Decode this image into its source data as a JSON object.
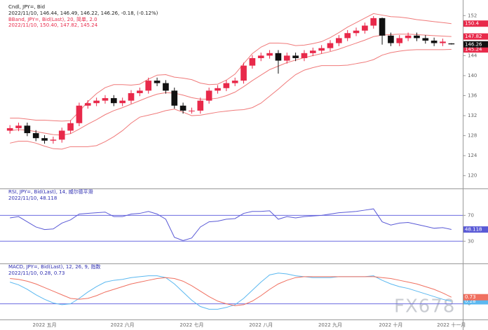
{
  "chart_data": [
    {
      "type": "candlestick",
      "title": "Cndl, JPY=, Bid",
      "subtitle": "2022/11/10, 146.44, 146.49, 146.22, 146.26, -0.18, (-0.12%)",
      "band_title": "BBand, JPY=, Bid(Last), 20, 简单, 2.0",
      "band_subtitle": "2022/11/10, 150.40, 147.82, 145.24",
      "categories": [
        null,
        null,
        null,
        null,
        "2022 五月",
        null,
        null,
        null,
        null,
        null,
        null,
        null,
        null,
        "2022 六月",
        null,
        null,
        null,
        null,
        null,
        null,
        null,
        "2022 七月",
        null,
        null,
        null,
        null,
        null,
        null,
        null,
        "2022 八月",
        null,
        null,
        null,
        null,
        null,
        null,
        null,
        "2022 九月",
        null,
        null,
        null,
        null,
        null,
        null,
        "2022 十月",
        null,
        null,
        null,
        null,
        null,
        null,
        "2022 十一月"
      ],
      "open": [
        129.0,
        129.5,
        130,
        128.5,
        127.5,
        127,
        127.2,
        129,
        130.5,
        134,
        134.5,
        135,
        135.5,
        134.5,
        135,
        136.5,
        137,
        139,
        138.5,
        137,
        134,
        133,
        133,
        135,
        137,
        137.5,
        138.5,
        139,
        142,
        143.5,
        144,
        144.5,
        143,
        144,
        143.5,
        144.5,
        145,
        145.5,
        146.5,
        147.5,
        148.5,
        149,
        150,
        151.5,
        148,
        146.5,
        147.5,
        148,
        147.5,
        147,
        146.5,
        146.44
      ],
      "high": [
        130.1,
        130.6,
        130.6,
        129.1,
        128.1,
        127.8,
        129.6,
        131.1,
        134.6,
        135.1,
        135.6,
        136.1,
        136.1,
        135.6,
        137.1,
        137.6,
        139.6,
        139.6,
        139.1,
        137.6,
        134.6,
        133.6,
        135.6,
        137.6,
        138.1,
        139.1,
        139.6,
        142.6,
        144.1,
        144.6,
        145.1,
        145.1,
        144.6,
        144.6,
        145.1,
        145.6,
        146.1,
        147.1,
        148.1,
        149.1,
        149.6,
        150.6,
        151.9,
        151.6,
        148.6,
        148.1,
        148.6,
        148.6,
        148.1,
        147.6,
        147.4,
        146.49
      ],
      "low": [
        128.4,
        128.9,
        127.9,
        126.9,
        126.4,
        126.4,
        126.6,
        128.4,
        129.9,
        133.4,
        133.9,
        134.4,
        133.9,
        133.9,
        134.4,
        135.9,
        136.4,
        137.9,
        136.4,
        133.4,
        132.4,
        132.4,
        132.4,
        134.4,
        136.4,
        136.9,
        137.9,
        138.4,
        141.4,
        142.9,
        143.4,
        140.4,
        142.4,
        142.9,
        142.9,
        143.9,
        144.4,
        144.9,
        145.9,
        146.9,
        147.9,
        148.4,
        149.4,
        146.2,
        145.9,
        145.9,
        146.9,
        146.9,
        146.4,
        145.9,
        145.9,
        146.22
      ],
      "close": [
        129.5,
        130,
        128.5,
        127.5,
        127,
        127.2,
        129,
        130.5,
        134,
        134.5,
        135,
        135.5,
        134.5,
        135,
        136.5,
        137,
        139,
        138.5,
        137,
        134,
        133,
        133,
        135,
        137,
        137.5,
        138.5,
        139,
        142,
        143.5,
        144,
        144.5,
        143,
        144,
        143.5,
        144.5,
        145,
        145.5,
        146.5,
        147.5,
        148.5,
        149,
        150,
        151.5,
        148,
        146.5,
        147.5,
        148,
        147.5,
        147,
        146.5,
        146.8,
        146.26
      ],
      "up_color": "#e8294a",
      "down_color": "#111111",
      "bands": [
        {
          "color": "#f07a7a",
          "values": [
            131.5,
            131.5,
            131.3,
            131.1,
            131.1,
            131,
            130.9,
            131,
            132.8,
            134.8,
            136.4,
            137.6,
            138.2,
            138.2,
            138.1,
            138.3,
            139.3,
            140.1,
            140.2,
            139.7,
            139.5,
            139.2,
            138.5,
            138.2,
            138.3,
            139.1,
            140.3,
            142.4,
            144.4,
            145.7,
            146.5,
            146.5,
            146.4,
            146,
            146.1,
            146.4,
            146.8,
            147.6,
            148.6,
            149.7,
            150.6,
            151.5,
            152.4,
            152.1,
            151.8,
            151.7,
            151.5,
            151.2,
            151,
            150.8,
            150.6,
            150.4
          ]
        },
        {
          "color": "#f07a7a",
          "values": [
            129,
            129.2,
            129.1,
            128.8,
            128.5,
            128.2,
            128.1,
            128.4,
            129.3,
            130.3,
            131.2,
            132.2,
            133,
            133.6,
            134.3,
            135,
            135.7,
            136.3,
            136.6,
            136.5,
            136.1,
            135.6,
            135.3,
            135.3,
            135.5,
            136,
            136.7,
            137.8,
            139,
            140.1,
            141.2,
            141.9,
            142.6,
            143.1,
            143.6,
            144,
            144.4,
            144.8,
            145.3,
            145.9,
            146.5,
            147.1,
            147.8,
            148.1,
            148.2,
            148.3,
            148.3,
            148.2,
            148.1,
            148,
            147.9,
            147.82
          ]
        },
        {
          "color": "#f07a7a",
          "values": [
            126.5,
            126.9,
            126.9,
            126.5,
            125.9,
            125.4,
            125.3,
            125.8,
            125.8,
            125.8,
            126,
            126.8,
            127.8,
            129,
            130.5,
            131.7,
            132.1,
            132.5,
            133,
            133.3,
            132.7,
            132,
            132.1,
            132.4,
            132.7,
            132.9,
            133.1,
            133.2,
            133.6,
            134.5,
            135.9,
            137.3,
            138.8,
            140.2,
            141.1,
            141.6,
            142,
            142,
            142,
            142.1,
            142.4,
            142.7,
            143.2,
            144.1,
            144.6,
            144.9,
            145.1,
            145.2,
            145.2,
            145.2,
            145.2,
            145.24
          ]
        }
      ],
      "ylim": [
        118,
        154
      ],
      "yticks": [
        120,
        124,
        128,
        132,
        136,
        140,
        144,
        148,
        152
      ],
      "grid": false
    },
    {
      "type": "line",
      "title": "RSI, JPY=, Bid(Last), 14, 威尔德平滑",
      "subtitle": "2022/11/10, 48.118",
      "series": [
        {
          "color": "#5a5ad6",
          "values": [
            66,
            68,
            60,
            52,
            48,
            49,
            58,
            63,
            72,
            73,
            74,
            75,
            68,
            68,
            72,
            73,
            76,
            72,
            64,
            36,
            31,
            35,
            52,
            60,
            61,
            64,
            65,
            73,
            76,
            76,
            77,
            64,
            68,
            66,
            68,
            69,
            70,
            72,
            74,
            75,
            76,
            78,
            80,
            60,
            55,
            58,
            59,
            56,
            53,
            50,
            51,
            48.118
          ]
        }
      ],
      "ylim": [
        0,
        105
      ],
      "yticks": [
        30,
        50,
        70
      ],
      "grid": true,
      "grid_lines": [
        30,
        70
      ],
      "grid_color": "#6b6be0"
    },
    {
      "type": "line",
      "title": "MACD, JPY=, Bid(Last), 12, 26, 9, 指数",
      "subtitle": "2022/11/10, 0.28, 0.73",
      "series": [
        {
          "color": "#5bb8f0",
          "values": [
            2.4,
            2.1,
            1.6,
            1.0,
            0.5,
            0.1,
            -0.1,
            0.0,
            0.6,
            1.3,
            1.9,
            2.4,
            2.6,
            2.7,
            2.9,
            3.0,
            3.1,
            3.1,
            2.9,
            2.2,
            1.3,
            0.4,
            -0.3,
            -0.6,
            -0.6,
            -0.4,
            -0.1,
            0.6,
            1.5,
            2.4,
            3.2,
            3.4,
            3.3,
            3.1,
            3.0,
            2.9,
            2.9,
            2.9,
            3.0,
            3.0,
            3.0,
            3.0,
            3.1,
            2.6,
            2.2,
            1.9,
            1.7,
            1.4,
            1.1,
            0.8,
            0.5,
            0.28
          ]
        },
        {
          "color": "#f07060",
          "values": [
            2.8,
            2.7,
            2.5,
            2.2,
            1.8,
            1.4,
            1.0,
            0.6,
            0.5,
            0.6,
            0.9,
            1.3,
            1.6,
            1.9,
            2.2,
            2.4,
            2.6,
            2.8,
            2.9,
            2.8,
            2.5,
            2.0,
            1.4,
            0.8,
            0.3,
            0.0,
            -0.2,
            -0.1,
            0.3,
            0.9,
            1.6,
            2.2,
            2.6,
            2.9,
            3.0,
            3.0,
            3.0,
            3.0,
            3.0,
            3.0,
            3.0,
            3.0,
            3.0,
            2.9,
            2.8,
            2.6,
            2.4,
            2.2,
            1.9,
            1.6,
            1.2,
            0.73
          ]
        }
      ],
      "ylim": [
        -1.5,
        4
      ],
      "yticks": [
        0
      ],
      "grid": true,
      "grid_lines": [
        0
      ],
      "grid_color": "#6b6be0"
    }
  ],
  "watermark": "FX678"
}
